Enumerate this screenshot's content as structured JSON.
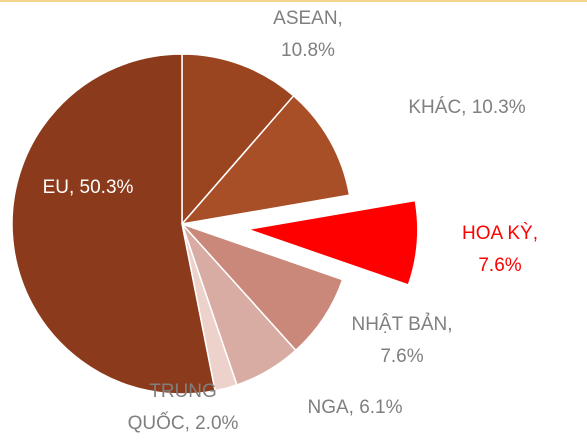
{
  "chart_data": {
    "type": "pie",
    "value_labels": [
      "ASEAN,\n10.8%",
      "KHÁC, 10.3%",
      "HOA KỲ, 7.6%",
      "NHẬT BẢN,\n7.6%",
      "NGA, 6.1%",
      "TRUNG\nQUỐC, 2.0%",
      "EU, 50.3%"
    ],
    "values": [
      10.8,
      10.3,
      7.6,
      7.6,
      6.1,
      2.0,
      50.3
    ],
    "colors": [
      "#9a4520",
      "#a94f27",
      "#ff0000",
      "#c9887a",
      "#d9aca3",
      "#edd2cb",
      "#8b3a1b"
    ],
    "label_colors": [
      "#7f7f7f",
      "#7f7f7f",
      "#ff0000",
      "#7f7f7f",
      "#7f7f7f",
      "#7f7f7f",
      "#ffffff"
    ],
    "exploded": [
      false,
      false,
      true,
      false,
      false,
      false,
      false
    ]
  }
}
